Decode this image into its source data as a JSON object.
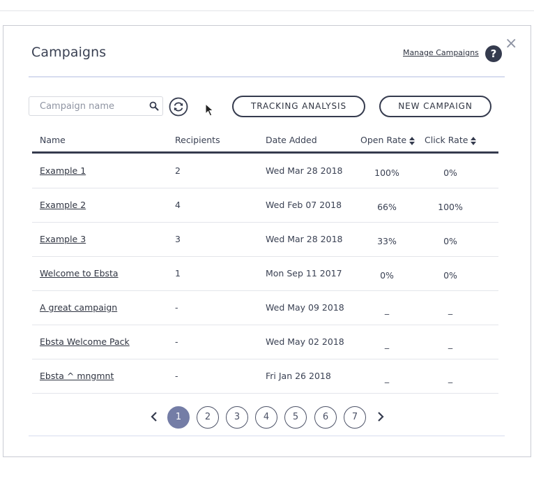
{
  "modal": {
    "title": "Campaigns",
    "manage_link": "Manage Campaigns",
    "help": "?",
    "close": "×"
  },
  "toolbar": {
    "search_placeholder": "Campaign name",
    "search_value": "",
    "tracking_label": "TRACKING ANALYSIS",
    "new_label": "NEW CAMPAIGN"
  },
  "table": {
    "columns": {
      "name": "Name",
      "recipients": "Recipients",
      "date": "Date Added",
      "open": "Open Rate",
      "click": "Click Rate"
    },
    "rows": [
      {
        "name": "Example 1",
        "recipients": "2",
        "date": "Wed Mar 28 2018",
        "open": "100%",
        "click": "0%"
      },
      {
        "name": "Example 2",
        "recipients": "4",
        "date": "Wed Feb 07 2018",
        "open": "66%",
        "click": "100%"
      },
      {
        "name": "Example 3",
        "recipients": "3",
        "date": "Wed Mar 28 2018",
        "open": "33%",
        "click": "0%"
      },
      {
        "name": "Welcome to Ebsta",
        "recipients": "1",
        "date": "Mon Sep 11 2017",
        "open": "0%",
        "click": "0%"
      },
      {
        "name": "A great campaign",
        "recipients": "-",
        "date": "Wed May 09 2018",
        "open": "_",
        "click": "_"
      },
      {
        "name": "Ebsta Welcome Pack",
        "recipients": "-",
        "date": "Wed May 02 2018",
        "open": "_",
        "click": "_"
      },
      {
        "name": "Ebsta ^ mngmnt",
        "recipients": "-",
        "date": "Fri Jan 26 2018",
        "open": "_",
        "click": "_"
      }
    ]
  },
  "pagination": {
    "pages": [
      "1",
      "2",
      "3",
      "4",
      "5",
      "6",
      "7"
    ],
    "current": "1"
  },
  "colors": {
    "dark": "#353b4e",
    "active_page": "#747da6",
    "accent_rule": "#d7dcef"
  },
  "icons": {
    "search": "search-icon",
    "refresh": "refresh-icon",
    "help": "help-icon",
    "close": "close-icon",
    "sort": "sort-icon",
    "prev": "chevron-left-icon",
    "next": "chevron-right-icon"
  }
}
